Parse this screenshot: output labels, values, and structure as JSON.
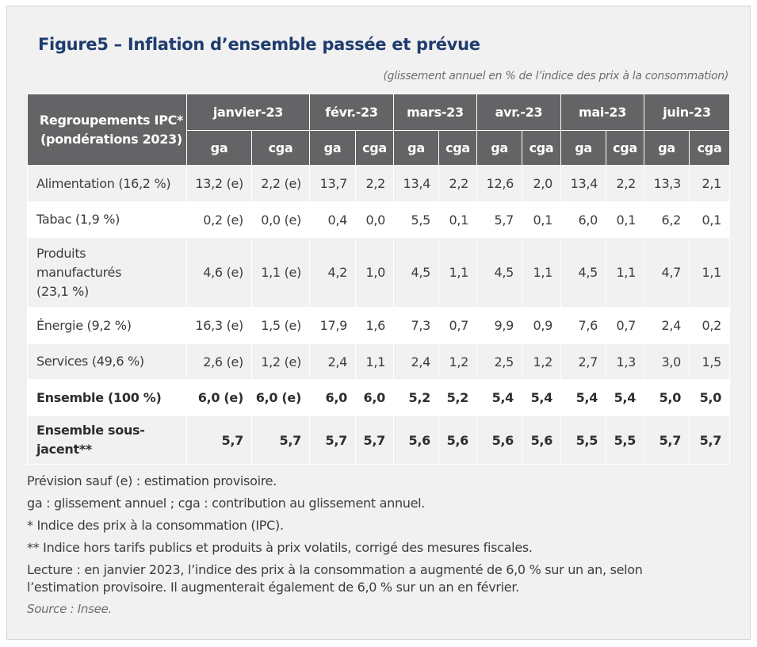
{
  "title": "Figure5 – Inflation d’ensemble passée et prévue",
  "subtitle": "(glissement annuel en % de l’indice des prix à la consommation)",
  "table": {
    "group_header_line1": "Regroupements IPC*",
    "group_header_line2": "(pondérations 2023)",
    "months": [
      "janvier-23",
      "févr.-23",
      "mars-23",
      "avr.-23",
      "mai-23",
      "juin-23"
    ],
    "sub_ga": "ga",
    "sub_cga": "cga",
    "rows": [
      {
        "label": [
          "Alimentation (16,2 %)"
        ],
        "values": [
          "13,2 (e)",
          "2,2 (e)",
          "13,7",
          "2,2",
          "13,4",
          "2,2",
          "12,6",
          "2,0",
          "13,4",
          "2,2",
          "13,3",
          "2,1"
        ]
      },
      {
        "label": [
          "Tabac (1,9 %)"
        ],
        "values": [
          "0,2 (e)",
          "0,0 (e)",
          "0,4",
          "0,0",
          "5,5",
          "0,1",
          "5,7",
          "0,1",
          "6,0",
          "0,1",
          "6,2",
          "0,1"
        ]
      },
      {
        "label": [
          "Produits",
          "manufacturés",
          "(23,1 %)"
        ],
        "values": [
          "4,6 (e)",
          "1,1 (e)",
          "4,2",
          "1,0",
          "4,5",
          "1,1",
          "4,5",
          "1,1",
          "4,5",
          "1,1",
          "4,7",
          "1,1"
        ]
      },
      {
        "label": [
          "Énergie (9,2 %)"
        ],
        "values": [
          "16,3 (e)",
          "1,5 (e)",
          "17,9",
          "1,6",
          "7,3",
          "0,7",
          "9,9",
          "0,9",
          "7,6",
          "0,7",
          "2,4",
          "0,2"
        ]
      },
      {
        "label": [
          "Services (49,6 %)"
        ],
        "values": [
          "2,6 (e)",
          "1,2 (e)",
          "2,4",
          "1,1",
          "2,4",
          "1,2",
          "2,5",
          "1,2",
          "2,7",
          "1,3",
          "3,0",
          "1,5"
        ]
      },
      {
        "label": [
          "Ensemble (100 %)"
        ],
        "values": [
          "6,0 (e)",
          "6,0 (e)",
          "6,0",
          "6,0",
          "5,2",
          "5,2",
          "5,4",
          "5,4",
          "5,4",
          "5,4",
          "5,0",
          "5,0"
        ],
        "bold": true
      },
      {
        "label": [
          "Ensemble sous-",
          "jacent**"
        ],
        "values": [
          "5,7",
          "5,7",
          "5,7",
          "5,7",
          "5,6",
          "5,6",
          "5,6",
          "5,6",
          "5,5",
          "5,5",
          "5,7",
          "5,7"
        ],
        "bold": true
      }
    ]
  },
  "notes": {
    "n1": "Prévision sauf (e) : estimation provisoire.",
    "n2": "ga : glissement annuel ; cga : contribution au glissement annuel.",
    "n3": "* Indice des prix à la consommation (IPC).",
    "n4": "** Indice hors tarifs publics et produits à prix volatils, corrigé des mesures fiscales.",
    "n5_line1": "Lecture : en janvier 2023, l’indice des prix à la consommation a augmenté de 6,0 % sur un an, selon",
    "n5_line2": "l’estimation provisoire. Il augmenterait également de 6,0 % sur un an en février.",
    "source": "Source : Insee."
  }
}
